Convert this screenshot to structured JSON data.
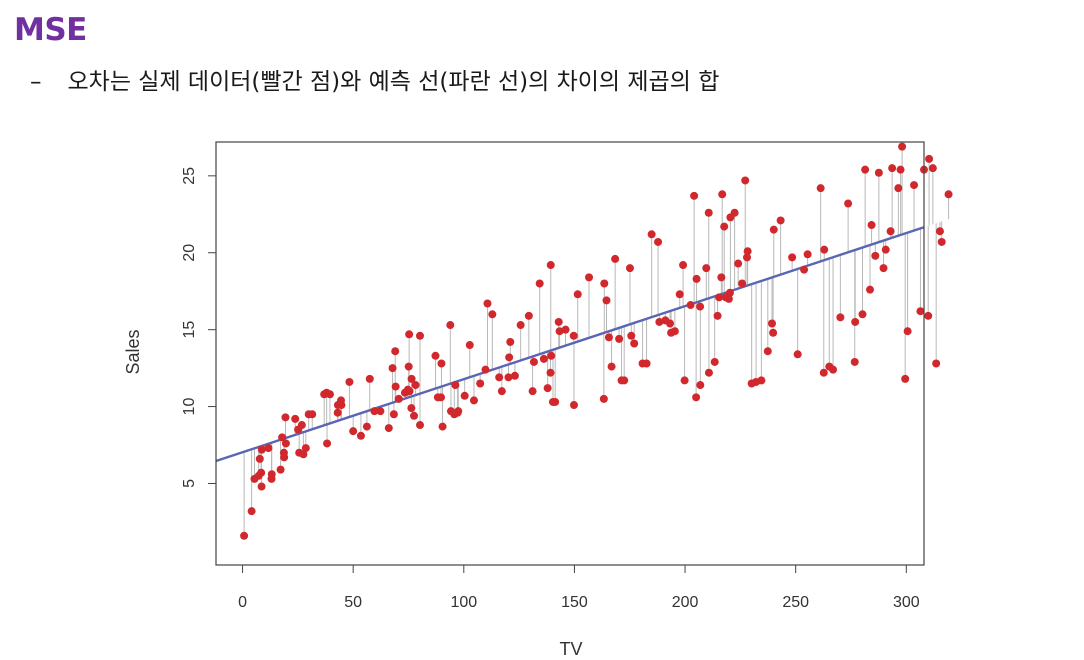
{
  "slide": {
    "title": "MSE",
    "bullet_marker": "–",
    "bullet_text": "오차는 실제 데이터(빨간 점)와 예측 선(파란 선)의 차이의 제곱의 합"
  },
  "colors": {
    "title": "#7030a0",
    "points": "#d1282d",
    "line": "#5a66b3",
    "residual": "#b8b8b8",
    "frame": "#444444"
  },
  "chart_data": {
    "type": "scatter",
    "xlabel": "TV",
    "ylabel": "Sales",
    "xlim": [
      -12,
      308
    ],
    "ylim": [
      -0.3,
      27.2
    ],
    "xticks": [
      0,
      50,
      100,
      150,
      200,
      250,
      300
    ],
    "yticks": [
      5,
      10,
      15,
      20,
      25
    ],
    "grid": false,
    "regression_line": {
      "intercept": 7.03,
      "slope": 0.0475
    },
    "residuals_shown": true,
    "points": [
      [
        0.7,
        1.6
      ],
      [
        4.1,
        3.2
      ],
      [
        5.4,
        5.3
      ],
      [
        7.3,
        5.5
      ],
      [
        7.8,
        6.6
      ],
      [
        8.4,
        5.7
      ],
      [
        8.6,
        4.8
      ],
      [
        8.7,
        7.2
      ],
      [
        11.7,
        7.3
      ],
      [
        13.1,
        5.3
      ],
      [
        13.2,
        5.6
      ],
      [
        17.2,
        5.9
      ],
      [
        17.9,
        8.0
      ],
      [
        18.7,
        7.0
      ],
      [
        18.8,
        6.7
      ],
      [
        19.4,
        9.3
      ],
      [
        19.6,
        7.6
      ],
      [
        23.8,
        9.2
      ],
      [
        25.1,
        8.5
      ],
      [
        25.6,
        7.0
      ],
      [
        26.8,
        8.8
      ],
      [
        27.5,
        6.9
      ],
      [
        28.6,
        7.3
      ],
      [
        29.9,
        9.5
      ],
      [
        31.5,
        9.5
      ],
      [
        36.9,
        10.8
      ],
      [
        38.0,
        10.9
      ],
      [
        38.2,
        7.6
      ],
      [
        39.5,
        10.8
      ],
      [
        43.0,
        9.6
      ],
      [
        43.1,
        10.1
      ],
      [
        44.5,
        10.4
      ],
      [
        44.7,
        10.1
      ],
      [
        48.3,
        11.6
      ],
      [
        50.0,
        8.4
      ],
      [
        53.5,
        8.1
      ],
      [
        56.2,
        8.7
      ],
      [
        57.5,
        11.8
      ],
      [
        59.6,
        9.7
      ],
      [
        62.3,
        9.7
      ],
      [
        66.1,
        8.6
      ],
      [
        67.8,
        12.5
      ],
      [
        68.4,
        9.5
      ],
      [
        69.0,
        13.6
      ],
      [
        69.2,
        11.3
      ],
      [
        70.6,
        10.5
      ],
      [
        73.4,
        10.9
      ],
      [
        74.7,
        11.1
      ],
      [
        75.1,
        12.6
      ],
      [
        75.3,
        14.7
      ],
      [
        75.5,
        11.0
      ],
      [
        76.3,
        9.9
      ],
      [
        76.4,
        11.8
      ],
      [
        77.5,
        9.4
      ],
      [
        78.2,
        11.4
      ],
      [
        80.2,
        14.6
      ],
      [
        80.2,
        8.8
      ],
      [
        87.2,
        13.3
      ],
      [
        88.3,
        10.6
      ],
      [
        89.7,
        10.6
      ],
      [
        89.9,
        12.8
      ],
      [
        90.4,
        8.7
      ],
      [
        93.9,
        15.3
      ],
      [
        94.2,
        9.7
      ],
      [
        95.7,
        9.5
      ],
      [
        96.2,
        11.4
      ],
      [
        97.2,
        9.6
      ],
      [
        97.5,
        9.7
      ],
      [
        100.4,
        10.7
      ],
      [
        102.7,
        14.0
      ],
      [
        104.6,
        10.4
      ],
      [
        107.4,
        11.5
      ],
      [
        109.8,
        12.4
      ],
      [
        110.7,
        16.7
      ],
      [
        112.9,
        16.0
      ],
      [
        116.0,
        11.9
      ],
      [
        117.2,
        11.0
      ],
      [
        120.2,
        11.9
      ],
      [
        120.5,
        13.2
      ],
      [
        121.0,
        14.2
      ],
      [
        123.1,
        12.0
      ],
      [
        125.7,
        15.3
      ],
      [
        129.4,
        15.9
      ],
      [
        131.1,
        11.0
      ],
      [
        131.7,
        12.9
      ],
      [
        134.3,
        18.0
      ],
      [
        136.2,
        13.1
      ],
      [
        137.9,
        11.2
      ],
      [
        139.2,
        12.2
      ],
      [
        139.3,
        19.2
      ],
      [
        139.5,
        13.3
      ],
      [
        140.3,
        10.3
      ],
      [
        141.3,
        10.3
      ],
      [
        142.9,
        15.5
      ],
      [
        143.3,
        14.9
      ],
      [
        146.0,
        15.0
      ],
      [
        149.7,
        14.6
      ],
      [
        149.8,
        10.1
      ],
      [
        151.5,
        17.3
      ],
      [
        156.6,
        18.4
      ],
      [
        163.3,
        10.5
      ],
      [
        163.5,
        18.0
      ],
      [
        164.5,
        16.9
      ],
      [
        165.6,
        14.5
      ],
      [
        166.8,
        12.6
      ],
      [
        168.4,
        19.6
      ],
      [
        170.2,
        14.4
      ],
      [
        171.3,
        11.7
      ],
      [
        172.5,
        11.7
      ],
      [
        175.1,
        19.0
      ],
      [
        175.7,
        14.6
      ],
      [
        177.0,
        14.1
      ],
      [
        180.8,
        12.8
      ],
      [
        182.6,
        12.8
      ],
      [
        184.9,
        21.2
      ],
      [
        187.8,
        20.7
      ],
      [
        188.4,
        15.5
      ],
      [
        191.1,
        15.6
      ],
      [
        193.2,
        15.4
      ],
      [
        193.7,
        14.8
      ],
      [
        195.4,
        14.9
      ],
      [
        197.6,
        17.3
      ],
      [
        199.1,
        19.2
      ],
      [
        199.8,
        11.7
      ],
      [
        202.5,
        16.6
      ],
      [
        204.1,
        23.7
      ],
      [
        205.0,
        10.6
      ],
      [
        205.2,
        18.3
      ],
      [
        206.8,
        16.5
      ],
      [
        206.9,
        11.4
      ],
      [
        209.6,
        19.0
      ],
      [
        210.7,
        22.6
      ],
      [
        210.8,
        12.2
      ],
      [
        213.4,
        12.9
      ],
      [
        214.7,
        15.9
      ],
      [
        215.4,
        17.1
      ],
      [
        216.4,
        18.4
      ],
      [
        216.8,
        23.8
      ],
      [
        217.7,
        21.7
      ],
      [
        218.4,
        17.1
      ],
      [
        219.8,
        17.0
      ],
      [
        220.3,
        17.4
      ],
      [
        220.5,
        22.3
      ],
      [
        222.4,
        22.6
      ],
      [
        224.0,
        19.3
      ],
      [
        225.8,
        18.0
      ],
      [
        227.2,
        24.7
      ],
      [
        228.0,
        19.7
      ],
      [
        228.3,
        20.1
      ],
      [
        230.1,
        11.5
      ],
      [
        232.1,
        11.6
      ],
      [
        234.5,
        11.7
      ],
      [
        237.4,
        13.6
      ],
      [
        239.3,
        15.4
      ],
      [
        239.8,
        14.8
      ],
      [
        240.1,
        21.5
      ],
      [
        243.2,
        22.1
      ],
      [
        248.4,
        19.7
      ],
      [
        250.9,
        13.4
      ],
      [
        253.8,
        18.9
      ],
      [
        255.4,
        19.9
      ],
      [
        261.3,
        24.2
      ],
      [
        262.7,
        12.2
      ],
      [
        262.9,
        20.2
      ],
      [
        265.2,
        12.6
      ],
      [
        266.9,
        12.4
      ],
      [
        270.2,
        15.8
      ],
      [
        273.7,
        23.2
      ],
      [
        276.7,
        12.9
      ],
      [
        276.9,
        15.5
      ],
      [
        280.2,
        16.0
      ],
      [
        281.4,
        25.4
      ],
      [
        283.6,
        17.6
      ],
      [
        284.3,
        21.8
      ],
      [
        286.0,
        19.8
      ],
      [
        287.6,
        25.2
      ],
      [
        289.7,
        19.0
      ],
      [
        290.7,
        20.2
      ],
      [
        292.9,
        21.4
      ],
      [
        293.6,
        25.5
      ],
      [
        296.4,
        24.2
      ],
      [
        297.4,
        25.4
      ],
      [
        298.1,
        26.9
      ],
      [
        299.5,
        11.8
      ],
      [
        300.6,
        14.9
      ],
      [
        303.5,
        24.4
      ],
      [
        306.4,
        16.2
      ],
      [
        308.0,
        25.4
      ],
      [
        309.9,
        15.9
      ],
      [
        310.3,
        26.1
      ],
      [
        312.0,
        25.5
      ],
      [
        313.5,
        12.8
      ],
      [
        315.2,
        21.4
      ],
      [
        316.0,
        20.7
      ],
      [
        319.1,
        23.8
      ]
    ]
  }
}
